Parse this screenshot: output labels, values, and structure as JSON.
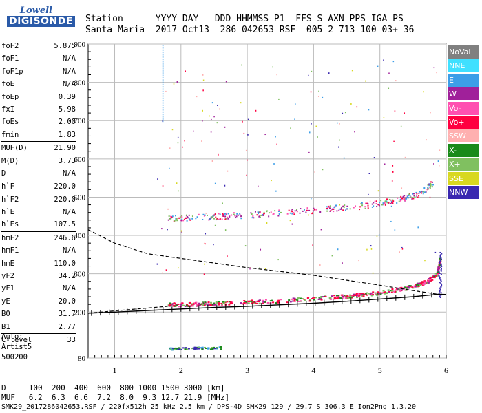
{
  "logo": {
    "brand_top": "Lowell",
    "brand_bottom": "DIGISONDE"
  },
  "header": {
    "labels": "Station      YYYY DAY   DDD HHMMSS P1  FFS S AXN PPS IGA PS",
    "values": "Santa Maria  2017 Oct13  286 042653 RSF  005 2 713 100 03+ 36"
  },
  "params": [
    {
      "k": "foF2",
      "v": "5.875"
    },
    {
      "k": "foF1",
      "v": "N/A"
    },
    {
      "k": "foF1p",
      "v": "N/A"
    },
    {
      "k": "foE",
      "v": "N/A"
    },
    {
      "k": "foEp",
      "v": "0.39"
    },
    {
      "k": "fxI",
      "v": "5.98"
    },
    {
      "k": "foEs",
      "v": "2.00"
    },
    {
      "k": "fmin",
      "v": "1.83"
    },
    {
      "k": "MUF(D)",
      "v": "21.90",
      "sep": true
    },
    {
      "k": "M(D)",
      "v": "3.73"
    },
    {
      "k": "D",
      "v": "N/A"
    },
    {
      "k": "h`F",
      "v": "220.0",
      "sep": true
    },
    {
      "k": "h`F2",
      "v": "220.0"
    },
    {
      "k": "h`E",
      "v": "N/A"
    },
    {
      "k": "h`Es",
      "v": "107.5"
    },
    {
      "k": "hmF2",
      "v": "246.6",
      "sep": true
    },
    {
      "k": "hmF1",
      "v": "N/A"
    },
    {
      "k": "hmE",
      "v": "110.0"
    },
    {
      "k": "yF2",
      "v": "34.2"
    },
    {
      "k": "yF1",
      "v": "N/A"
    },
    {
      "k": "yE",
      "v": "20.0"
    },
    {
      "k": "B0",
      "v": "31.7"
    },
    {
      "k": "B1",
      "v": "2.77"
    },
    {
      "k": "C-level",
      "v": "33",
      "sep": true
    }
  ],
  "auto": {
    "line1": "Auto:",
    "line2": "Artist5",
    "line3": "500200"
  },
  "legend": [
    {
      "label": "NoVal",
      "bg": "#808080",
      "fg": "#ffffff"
    },
    {
      "label": "NNE",
      "bg": "#40e0ff",
      "fg": "#ffffff"
    },
    {
      "label": "E",
      "bg": "#3c9ee8",
      "fg": "#ffffff"
    },
    {
      "label": "W",
      "bg": "#a0209a",
      "fg": "#ffffff"
    },
    {
      "label": "Vo-",
      "bg": "#ff50b0",
      "fg": "#ffffff"
    },
    {
      "label": "Vo+",
      "bg": "#ff0040",
      "fg": "#ffffff"
    },
    {
      "label": "SSW",
      "bg": "#ffb0b0",
      "fg": "#ffffff"
    },
    {
      "label": "X-",
      "bg": "#1a8a1a",
      "fg": "#ffffff"
    },
    {
      "label": "X+",
      "bg": "#80c060",
      "fg": "#ffffff"
    },
    {
      "label": "SSE",
      "bg": "#d8d820",
      "fg": "#ffffff"
    },
    {
      "label": "NNW",
      "bg": "#3a28b0",
      "fg": "#ffffff"
    }
  ],
  "bottom": {
    "row1": "D     100  200  400  600  800 1000 1500 3000 [km]",
    "row2": "MUF   6.2  6.3  6.6  7.2  8.0  9.3 12.7 21.9 [MHz]"
  },
  "footer": "SMK29_2017286042653.RSF / 220fx512h 25 kHz 2.5 km / DPS-4D SMK29 129 / 29.7 S 306.3 E Ion2Png 1.3.20",
  "chart_data": {
    "type": "scatter",
    "xlim": [
      0.6,
      6.0
    ],
    "ylim": [
      80,
      900
    ],
    "xticks": [
      1,
      2,
      3,
      4,
      5,
      6
    ],
    "yticks": [
      80,
      200,
      300,
      400,
      500,
      600,
      700,
      800,
      900
    ],
    "grid": true,
    "f_layer_trace": {
      "x": [
        1.8,
        2.2,
        2.8,
        3.4,
        4.0,
        4.6,
        5.0,
        5.4,
        5.7,
        5.85,
        5.9
      ],
      "y": [
        220,
        222,
        226,
        230,
        236,
        244,
        252,
        264,
        280,
        300,
        340
      ]
    },
    "multihop_trace": {
      "x": [
        1.8,
        2.4,
        3.0,
        3.6,
        4.2,
        4.8,
        5.2,
        5.6,
        5.8
      ],
      "y": [
        445,
        450,
        455,
        462,
        470,
        480,
        492,
        510,
        540
      ]
    },
    "es_trace": {
      "x": [
        1.8,
        2.0,
        2.2,
        2.4,
        2.6
      ],
      "y": [
        105,
        106,
        107,
        107,
        108
      ]
    },
    "profile_curve": {
      "x": [
        0.6,
        1.0,
        1.5,
        2.0,
        2.5,
        3.0,
        3.5,
        4.0,
        4.5,
        5.0,
        5.5,
        5.875,
        6.0
      ],
      "y": [
        197,
        200,
        204,
        208,
        212,
        215,
        219,
        223,
        228,
        234,
        240,
        246.6,
        246
      ]
    },
    "dashed_curve": {
      "x": [
        0.6,
        1.0,
        1.5,
        2.0,
        2.5,
        3.0,
        3.5,
        4.0,
        4.5,
        5.0,
        5.5,
        5.875
      ],
      "y": [
        415,
        380,
        352,
        340,
        328,
        316,
        306,
        296,
        283,
        270,
        256,
        246.6
      ]
    },
    "dashed_low": {
      "x": [
        0.6,
        1.8
      ],
      "y": [
        197,
        215
      ]
    }
  }
}
